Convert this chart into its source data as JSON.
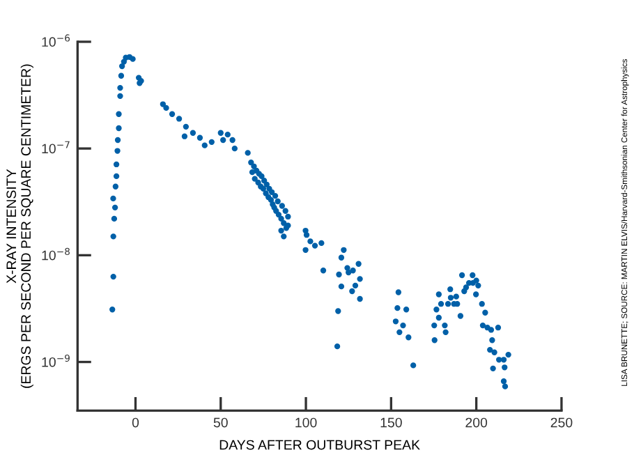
{
  "chart_data": {
    "type": "scatter",
    "xlabel": "DAYS AFTER OUTBURST PEAK",
    "ylabel": "X-RAY INTENSITY\n(ERGS PER SECOND PER SQUARE CENTIMETER)",
    "log": "y",
    "xlim": [
      -34,
      250
    ],
    "xticks": [
      0,
      50,
      100,
      150,
      200,
      250
    ],
    "ylim": [
      3.5e-10,
      1e-06
    ],
    "yticks": [
      {
        "value": 1e-09,
        "label": "10$^{−9}$"
      },
      {
        "value": 1e-08,
        "label": "10$^{−8}$"
      },
      {
        "value": 1e-07,
        "label": "10$^{−7}$"
      },
      {
        "value": 1e-06,
        "label": "10$^{−6}$"
      }
    ],
    "grid": false,
    "marker": "circle",
    "annotations": [
      "LISA BRUNETTE; SOURCE: MARTIN ELVIS/Harvard-Smithsonian Center for Astrophysics"
    ],
    "series": [
      {
        "color": "#0060a8",
        "x": [
          -13.6,
          -13,
          -13,
          -12.5,
          -12,
          -13.1,
          -11.7,
          -11.2,
          -11.2,
          -10.6,
          -10.4,
          -9.8,
          -9.8,
          -9,
          -9,
          -8.4,
          -7.9,
          -6.8,
          -5.7,
          -3.5,
          -1.6,
          1.9,
          2.4,
          3.3,
          16.1,
          18,
          21.5,
          25.6,
          29.6,
          28.8,
          33.7,
          37.8,
          40.6,
          44.7,
          50,
          51.4,
          54.1,
          56.9,
          58.2,
          65.9,
          67.8,
          68.5,
          69.5,
          70,
          71,
          72,
          72.5,
          73.5,
          74,
          75,
          75.5,
          76.5,
          77,
          78,
          78.5,
          79.5,
          80,
          80.5,
          81.4,
          82,
          82.5,
          83.5,
          84,
          85.5,
          85.5,
          86,
          87,
          88,
          88.5,
          89.5,
          89.5,
          87,
          99.8,
          100.4,
          102.6,
          105.3,
          109.1,
          99.8,
          110.2,
          122.2,
          120.8,
          119.4,
          124.3,
          127.6,
          130.9,
          131.7,
          129,
          120.8,
          131.7,
          118.9,
          118.4,
          127.1,
          125,
          154.3,
          153.7,
          158.9,
          152.7,
          157,
          154.9,
          160.2,
          163,
          175.5,
          175.3,
          176.6,
          178,
          179.3,
          178,
          181.5,
          182,
          184.7,
          186.9,
          188.2,
          190.7,
          191.6,
          192.9,
          195.7,
          197.8,
          199.8,
          201.1,
          203.3,
          205.2,
          203.8,
          206.5,
          208.7,
          212.8,
          209.3,
          208,
          210.6,
          209.8,
          213.3,
          216.1,
          218.8,
          216.6,
          216.1,
          216.9,
          183.4,
          188.8,
          194,
          198,
          185,
          200
        ],
        "values": [
          3.1e-09,
          6.3e-09,
          1.5e-08,
          2.2e-08,
          2.8e-08,
          3.4e-08,
          4.4e-08,
          5.5e-08,
          7.1e-08,
          9.5e-08,
          1.2e-07,
          1.55e-07,
          2.1e-07,
          3.1e-07,
          3.7e-07,
          4.8e-07,
          5.9e-07,
          6.5e-07,
          7.1e-07,
          7.2e-07,
          6.9e-07,
          4.6e-07,
          4.1e-07,
          4.3e-07,
          2.6e-07,
          2.4e-07,
          2.1e-07,
          1.9e-07,
          1.6e-07,
          1.3e-07,
          1.4e-07,
          1.26e-07,
          1.07e-07,
          1.15e-07,
          1.4e-07,
          1.2e-07,
          1.35e-07,
          1.2e-07,
          1e-07,
          9.1e-08,
          7.4e-08,
          6e-08,
          6.8e-08,
          5.2e-08,
          6.2e-08,
          4.8e-08,
          5.8e-08,
          4.4e-08,
          5.5e-08,
          4.2e-08,
          5e-08,
          3.8e-08,
          4.6e-08,
          3.5e-08,
          4.2e-08,
          3.3e-08,
          3.9e-08,
          3e-08,
          2.8e-08,
          3.6e-08,
          2.6e-08,
          3.2e-08,
          2.4e-08,
          2.2e-08,
          1.7e-08,
          2.9e-08,
          2e-08,
          2.6e-08,
          1.8e-08,
          1.9e-08,
          2.3e-08,
          1.5e-08,
          1.7e-08,
          1.55e-08,
          1.35e-08,
          1.23e-08,
          1.3e-08,
          1.12e-08,
          7.2e-09,
          1.12e-08,
          9.5e-09,
          6.6e-09,
          7.6e-09,
          7.2e-09,
          8.3e-09,
          6e-09,
          5.2e-09,
          5.1e-09,
          3.9e-09,
          3e-09,
          1.4e-09,
          4.6e-09,
          6.9e-09,
          4.5e-09,
          3.2e-09,
          3.1e-09,
          2.4e-09,
          2.2e-09,
          1.9e-09,
          1.7e-09,
          9.3e-10,
          1.6e-09,
          2.2e-09,
          3.1e-09,
          4.3e-09,
          3.5e-09,
          2.6e-09,
          2.2e-09,
          1.9e-09,
          4.8e-09,
          3.5e-09,
          4.1e-09,
          2.7e-09,
          6.5e-09,
          4.6e-09,
          5.5e-09,
          6.5e-09,
          4.3e-09,
          5.2e-09,
          3.5e-09,
          2.9e-09,
          2.2e-09,
          2.1e-09,
          2e-09,
          2.1e-09,
          1.6e-09,
          1.3e-09,
          1.23e-09,
          8.7e-10,
          1.05e-09,
          1.05e-09,
          1.17e-09,
          8.9e-10,
          6.6e-10,
          5.9e-10,
          3.5e-09,
          3.5e-09,
          5e-09,
          5.5e-09,
          4e-09,
          5.8e-09
        ]
      }
    ]
  }
}
